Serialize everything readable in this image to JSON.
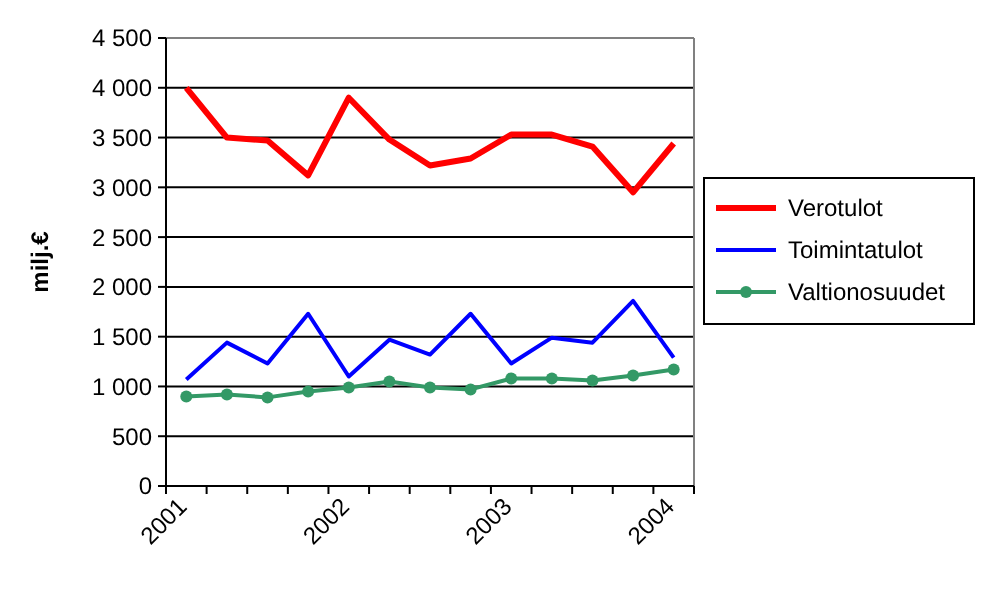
{
  "chart_data": {
    "type": "line",
    "ylabel": "milj.€",
    "categories": [
      "2001",
      null,
      null,
      null,
      "2002",
      null,
      null,
      null,
      "2003",
      null,
      null,
      null,
      "2004"
    ],
    "series": [
      {
        "name": "Verotulot",
        "color": "#ff0000",
        "values": [
          4000,
          3500,
          3470,
          3120,
          3900,
          3480,
          3220,
          3290,
          3530,
          3530,
          3410,
          2950,
          3440
        ]
      },
      {
        "name": "Toimintatulot",
        "color": "#0000ff",
        "values": [
          1070,
          1440,
          1230,
          1730,
          1100,
          1470,
          1320,
          1730,
          1230,
          1490,
          1440,
          1860,
          1290
        ]
      },
      {
        "name": "Valtionosuudet",
        "color": "#339966",
        "marker": "circle",
        "values": [
          900,
          920,
          890,
          950,
          990,
          1050,
          990,
          970,
          1080,
          1080,
          1060,
          1110,
          1170
        ]
      }
    ],
    "ylim": [
      0,
      4500
    ],
    "yticks": [
      {
        "value": 0,
        "label": "0"
      },
      {
        "value": 500,
        "label": "500"
      },
      {
        "value": 1000,
        "label": "1 000"
      },
      {
        "value": 1500,
        "label": "1 500"
      },
      {
        "value": 2000,
        "label": "2 000"
      },
      {
        "value": 2500,
        "label": "2 500"
      },
      {
        "value": 3000,
        "label": "3 000"
      },
      {
        "value": 3500,
        "label": "3 500"
      },
      {
        "value": 4000,
        "label": "4 000"
      },
      {
        "value": 4500,
        "label": "4 500"
      }
    ],
    "grid": "y",
    "legend": "right"
  }
}
